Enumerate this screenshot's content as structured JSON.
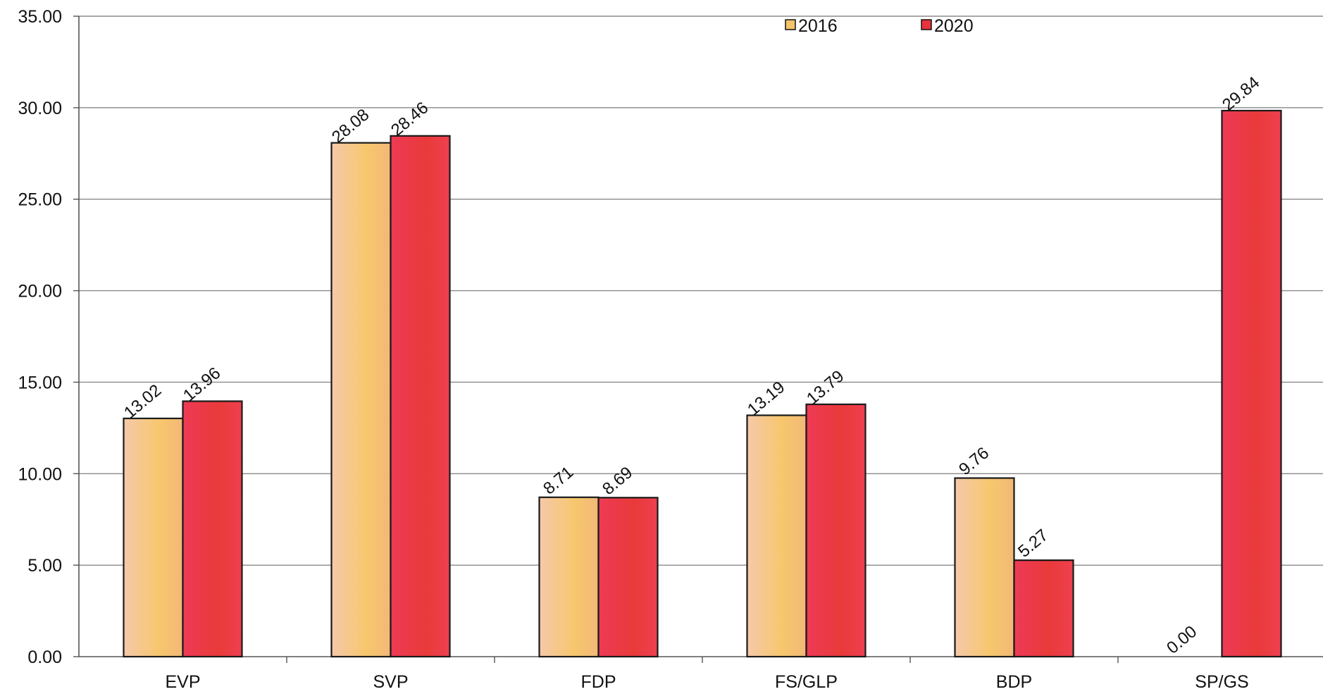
{
  "chart_data": {
    "type": "bar",
    "title": "",
    "xlabel": "",
    "ylabel": "",
    "categories": [
      "EVP",
      "SVP",
      "FDP",
      "FS/GLP",
      "BDP",
      "SP/GS"
    ],
    "series": [
      {
        "name": "2016",
        "values": [
          13.02,
          28.08,
          8.71,
          13.19,
          9.76,
          0.0
        ],
        "labels": [
          "13.02",
          "28.08",
          "8.71",
          "13.19",
          "9.76",
          "0.00"
        ],
        "color": "#f5c36a"
      },
      {
        "name": "2020",
        "values": [
          13.96,
          28.46,
          8.69,
          13.79,
          5.27,
          29.84
        ],
        "labels": [
          "13.96",
          "28.46",
          "8.69",
          "13.79",
          "5.27",
          "29.84"
        ],
        "color": "#e8323c"
      }
    ],
    "ylim": [
      0,
      35
    ],
    "yticks": [
      "0.00",
      "5.00",
      "10.00",
      "15.00",
      "20.00",
      "25.00",
      "30.00",
      "35.00"
    ],
    "grid": true,
    "legend_position": "top-center"
  }
}
